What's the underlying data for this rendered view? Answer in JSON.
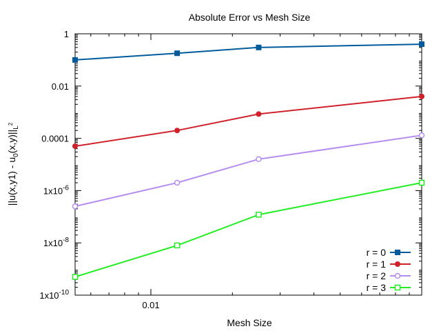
{
  "chart_data": {
    "type": "line",
    "title": "Absolute Error vs Mesh Size",
    "xlabel": "Mesh Size",
    "ylabel_main": "||u(x,y1) - u",
    "ylabel_sub0": "0",
    "ylabel_mid": "(x,y)||",
    "ylabel_subL": "L",
    "ylabel_sup2": "2",
    "x_scale": "log",
    "y_scale": "log",
    "xlim": [
      0.00525,
      0.1
    ],
    "ylim": [
      1e-10,
      1
    ],
    "grid": false,
    "legend_position": "bottom-right",
    "x_ticks": [
      {
        "value": 0.01,
        "label": "0.01"
      }
    ],
    "y_ticks": [
      {
        "value": 1,
        "base": "1",
        "exp": ""
      },
      {
        "value": 0.01,
        "base": "0.01",
        "exp": ""
      },
      {
        "value": 0.0001,
        "base": "0.0001",
        "exp": ""
      },
      {
        "value": 1e-06,
        "base": "1x10",
        "exp": "-6"
      },
      {
        "value": 1e-08,
        "base": "1x10",
        "exp": "-8"
      },
      {
        "value": 1e-10,
        "base": "1x10",
        "exp": "-10"
      }
    ],
    "x": [
      0.00525,
      0.0125,
      0.025,
      0.1
    ],
    "series": [
      {
        "name": "r = 0",
        "color": "#005a9c",
        "marker": "filled-square",
        "values": [
          0.1,
          0.18,
          0.3,
          0.4
        ]
      },
      {
        "name": "r = 1",
        "color": "#d0202a",
        "marker": "filled-circle",
        "values": [
          5e-05,
          0.0002,
          0.00085,
          0.004
        ]
      },
      {
        "name": "r = 2",
        "color": "#b58cf0",
        "marker": "open-circle",
        "values": [
          2.5e-07,
          2e-06,
          1.6e-05,
          0.00013
        ]
      },
      {
        "name": "r = 3",
        "color": "#22ee22",
        "marker": "open-square",
        "values": [
          5e-10,
          8e-09,
          1.2e-07,
          2e-06
        ]
      }
    ]
  }
}
